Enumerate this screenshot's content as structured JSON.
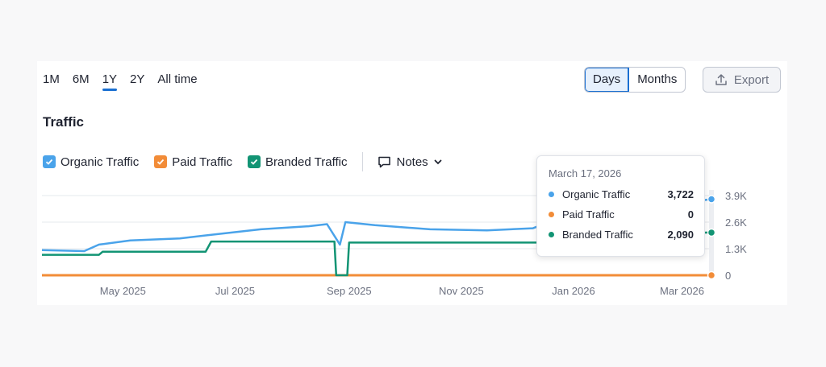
{
  "ranges": [
    "1M",
    "6M",
    "1Y",
    "2Y",
    "All time"
  ],
  "active_range": "1Y",
  "granularity": {
    "options": [
      "Days",
      "Months"
    ],
    "selected": "Days"
  },
  "export_label": "Export",
  "section_title": "Traffic",
  "legend": [
    {
      "label": "Organic Traffic",
      "color": "#4aa3ea",
      "checked": true
    },
    {
      "label": "Paid Traffic",
      "color": "#f28c38",
      "checked": true
    },
    {
      "label": "Branded Traffic",
      "color": "#129474",
      "checked": true
    }
  ],
  "notes_label": "Notes",
  "tooltip": {
    "date": "March 17, 2026",
    "rows": [
      {
        "label": "Organic Traffic",
        "value": "3,722",
        "color": "#4aa3ea"
      },
      {
        "label": "Paid Traffic",
        "value": "0",
        "color": "#f28c38"
      },
      {
        "label": "Branded Traffic",
        "value": "2,090",
        "color": "#129474"
      }
    ]
  },
  "chart_data": {
    "type": "line",
    "x_range": [
      "2025-03-18",
      "2026-03-17"
    ],
    "x_ticks": [
      "May 2025",
      "Jul 2025",
      "Sep 2025",
      "Nov 2025",
      "Jan 2026",
      "Mar 2026"
    ],
    "y_ticks": [
      "0",
      "1.3K",
      "2.6K",
      "3.9K"
    ],
    "ylim": [
      0,
      3900
    ],
    "grid": true,
    "series": [
      {
        "name": "Organic Traffic",
        "color": "#4aa3ea",
        "points": [
          [
            "2025-03-18",
            1230
          ],
          [
            "2025-04-10",
            1180
          ],
          [
            "2025-04-18",
            1500
          ],
          [
            "2025-05-05",
            1700
          ],
          [
            "2025-06-01",
            1800
          ],
          [
            "2025-06-20",
            2000
          ],
          [
            "2025-07-15",
            2250
          ],
          [
            "2025-08-10",
            2400
          ],
          [
            "2025-08-20",
            2500
          ],
          [
            "2025-08-27",
            1500
          ],
          [
            "2025-08-30",
            2600
          ],
          [
            "2025-09-15",
            2450
          ],
          [
            "2025-10-15",
            2250
          ],
          [
            "2025-11-15",
            2200
          ],
          [
            "2025-12-10",
            2300
          ],
          [
            "2025-12-20",
            2650
          ],
          [
            "2026-01-20",
            3000
          ],
          [
            "2026-02-20",
            3450
          ],
          [
            "2026-03-17",
            3722
          ]
        ]
      },
      {
        "name": "Paid Traffic",
        "color": "#f28c38",
        "points": [
          [
            "2025-03-18",
            0
          ],
          [
            "2026-03-17",
            0
          ]
        ]
      },
      {
        "name": "Branded Traffic",
        "color": "#129474",
        "points": [
          [
            "2025-03-18",
            1000
          ],
          [
            "2025-04-18",
            1000
          ],
          [
            "2025-04-20",
            1150
          ],
          [
            "2025-06-15",
            1150
          ],
          [
            "2025-06-18",
            1650
          ],
          [
            "2025-08-24",
            1650
          ],
          [
            "2025-08-25",
            0
          ],
          [
            "2025-08-31",
            0
          ],
          [
            "2025-09-01",
            1600
          ],
          [
            "2025-12-15",
            1600
          ],
          [
            "2025-12-18",
            1950
          ],
          [
            "2026-03-17",
            2090
          ]
        ]
      }
    ]
  }
}
